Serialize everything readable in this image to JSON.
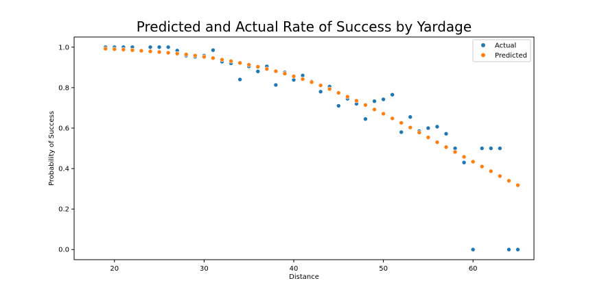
{
  "chart_data": {
    "type": "scatter",
    "title": "Predicted and Actual Rate of Success by Yardage",
    "xlabel": "Distance",
    "ylabel": "Probability of Success",
    "xlim": [
      15.5,
      66.8
    ],
    "ylim": [
      -0.05,
      1.05
    ],
    "xticks": [
      20,
      30,
      40,
      50,
      60
    ],
    "yticks": [
      0.0,
      0.2,
      0.4,
      0.6,
      0.8,
      1.0
    ],
    "legend_position": "top-right",
    "grid": false,
    "series": [
      {
        "name": "Actual",
        "color": "#1f77b4",
        "x": [
          19,
          20,
          21,
          22,
          24,
          25,
          26,
          27,
          28,
          29,
          30,
          31,
          32,
          33,
          34,
          35,
          36,
          37,
          38,
          39,
          40,
          41,
          42,
          43,
          44,
          45,
          46,
          47,
          48,
          49,
          50,
          51,
          52,
          53,
          54,
          55,
          56,
          57,
          58,
          59,
          60,
          61,
          62,
          63,
          64,
          65
        ],
        "y": [
          1.0,
          1.0,
          1.0,
          1.0,
          1.0,
          1.0,
          1.0,
          0.983,
          0.958,
          0.952,
          0.958,
          0.985,
          0.928,
          0.92,
          0.84,
          0.905,
          0.88,
          0.905,
          0.813,
          0.875,
          0.838,
          0.86,
          0.83,
          0.78,
          0.805,
          0.71,
          0.745,
          0.72,
          0.645,
          0.733,
          0.742,
          0.765,
          0.58,
          0.655,
          0.585,
          0.6,
          0.607,
          0.572,
          0.5,
          0.43,
          0.0,
          0.5,
          0.5,
          0.5,
          0.0,
          0.0
        ]
      },
      {
        "name": "Predicted",
        "color": "#ff7f0e",
        "x": [
          19,
          20,
          21,
          22,
          23,
          24,
          25,
          26,
          27,
          28,
          29,
          30,
          31,
          32,
          33,
          34,
          35,
          36,
          37,
          38,
          39,
          40,
          41,
          42,
          43,
          44,
          45,
          46,
          47,
          48,
          49,
          50,
          51,
          52,
          53,
          54,
          55,
          56,
          57,
          58,
          59,
          60,
          61,
          62,
          63,
          64,
          65
        ],
        "y": [
          0.992,
          0.99,
          0.988,
          0.985,
          0.982,
          0.979,
          0.976,
          0.972,
          0.968,
          0.964,
          0.958,
          0.952,
          0.946,
          0.938,
          0.931,
          0.922,
          0.913,
          0.903,
          0.892,
          0.881,
          0.869,
          0.856,
          0.842,
          0.827,
          0.811,
          0.793,
          0.774,
          0.755,
          0.735,
          0.714,
          0.692,
          0.671,
          0.648,
          0.626,
          0.603,
          0.578,
          0.554,
          0.53,
          0.506,
          0.482,
          0.458,
          0.434,
          0.41,
          0.387,
          0.363,
          0.34,
          0.318
        ]
      }
    ]
  }
}
